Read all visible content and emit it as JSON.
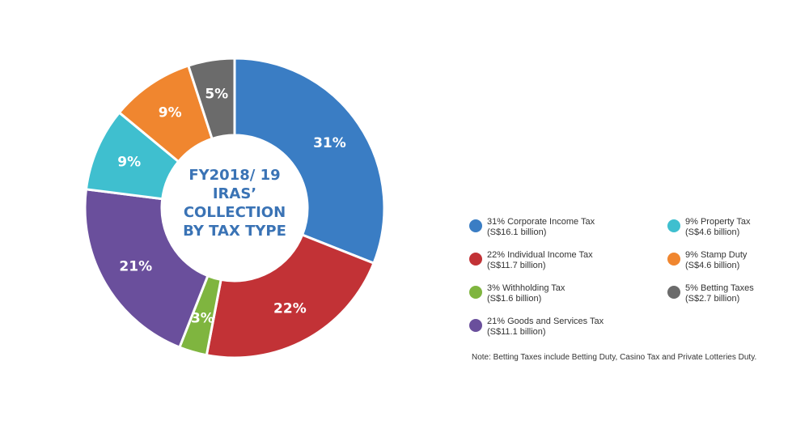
{
  "chart_data": {
    "type": "pie",
    "title": [
      "FY2018/ 19",
      "IRAS’",
      "COLLECTION",
      "BY TAX TYPE"
    ],
    "slices": [
      {
        "label": "31%",
        "value": 31,
        "color": "#3a7dc4"
      },
      {
        "label": "22%",
        "value": 22,
        "color": "#c23236"
      },
      {
        "label": "3%",
        "value": 3,
        "color": "#7fb53f"
      },
      {
        "label": "21%",
        "value": 21,
        "color": "#6a4f9c"
      },
      {
        "label": "9%",
        "value": 9,
        "color": "#3fbfcf"
      },
      {
        "label": "9%",
        "value": 9,
        "color": "#f0862f"
      },
      {
        "label": "5%",
        "value": 5,
        "color": "#6b6b6b"
      }
    ],
    "legend": [
      {
        "line1": "31% Corporate Income Tax",
        "line2": "(S$16.1 billion)",
        "color": "#3a7dc4"
      },
      {
        "line1": "22% Individual Income Tax",
        "line2": "(S$11.7 billion)",
        "color": "#c23236"
      },
      {
        "line1": "3% Withholding Tax",
        "line2": "(S$1.6 billion)",
        "color": "#7fb53f"
      },
      {
        "line1": "21% Goods and Services Tax",
        "line2": "(S$11.1 billion)",
        "color": "#6a4f9c"
      },
      {
        "line1": "9% Property Tax",
        "line2": "(S$4.6 billion)",
        "color": "#3fbfcf"
      },
      {
        "line1": "9% Stamp Duty",
        "line2": "(S$4.6 billion)",
        "color": "#f0862f"
      },
      {
        "line1": "5% Betting Taxes",
        "line2": "(S$2.7 billion)",
        "color": "#6b6b6b"
      }
    ],
    "note": "Note: Betting Taxes include Betting Duty, Casino Tax and Private Lotteries Duty."
  }
}
